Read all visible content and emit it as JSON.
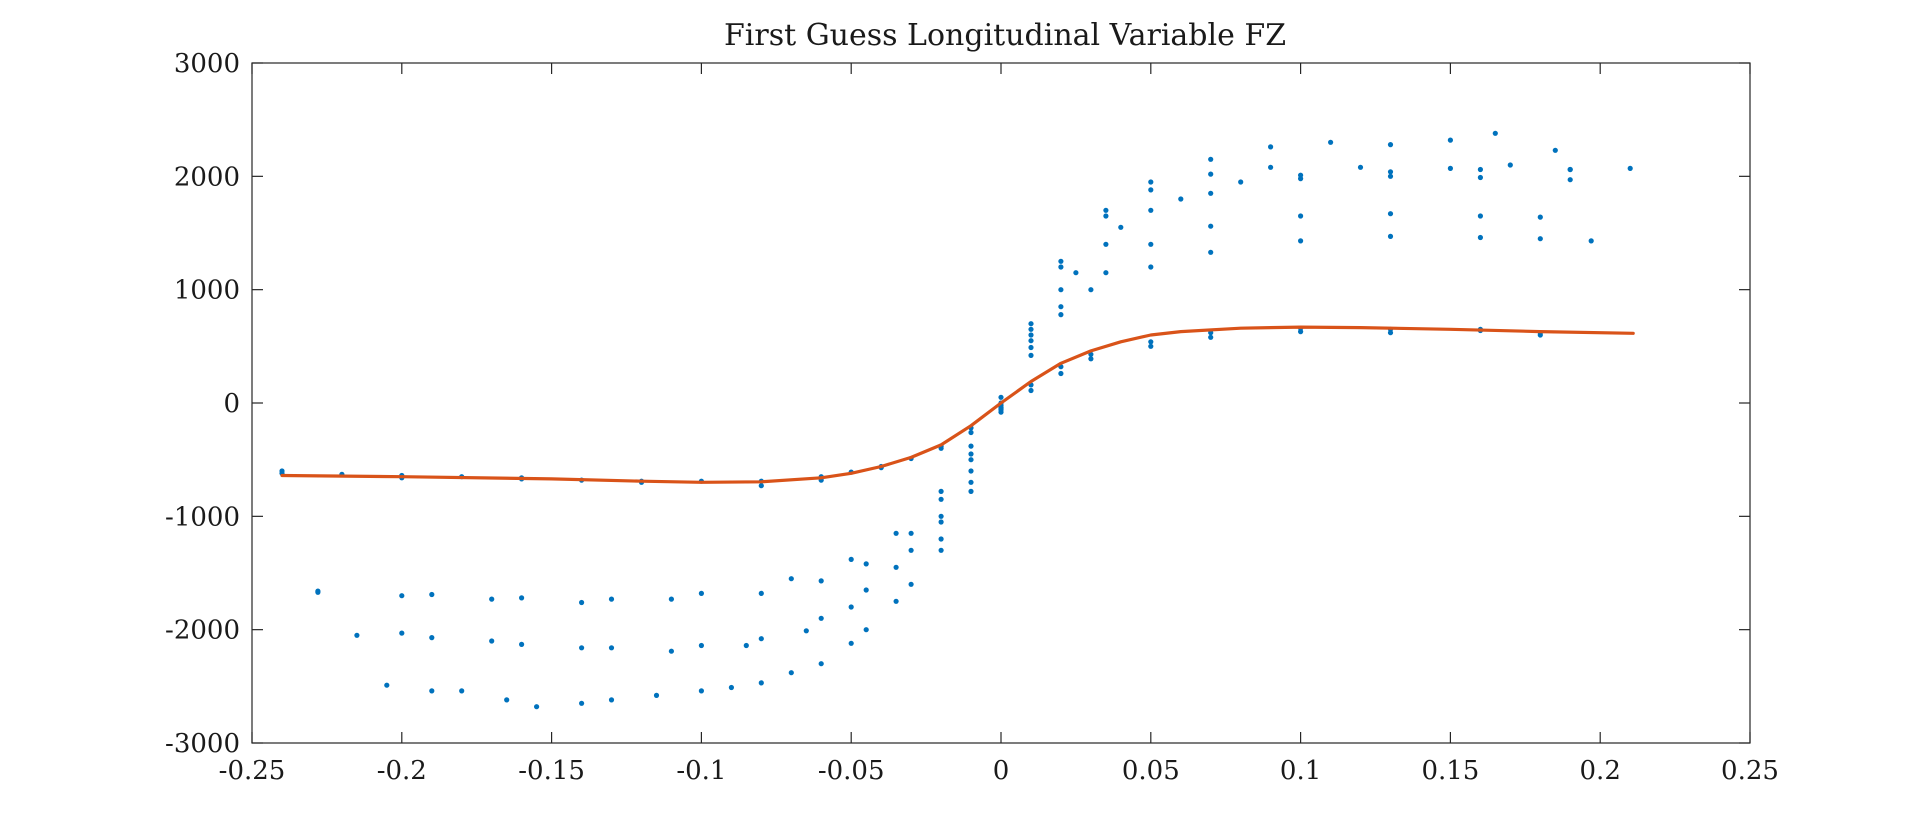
{
  "chart_data": {
    "type": "scatter",
    "title": "First Guess Longitudinal Variable FZ",
    "xlabel": "",
    "ylabel": "",
    "xlim": [
      -0.25,
      0.25
    ],
    "ylim": [
      -3000,
      3000
    ],
    "x_ticks": [
      "-0.25",
      "-0.2",
      "-0.15",
      "-0.1",
      "-0.05",
      "0",
      "0.05",
      "0.1",
      "0.15",
      "0.2",
      "0.25"
    ],
    "y_ticks": [
      "3000",
      "2000",
      "1000",
      "0",
      "-1000",
      "-2000",
      "-3000"
    ],
    "grid": false,
    "legend": "none",
    "colors": {
      "measured": "#0072BD",
      "fit": "#D95319"
    },
    "series": [
      {
        "kind": "scatter",
        "group": "measured",
        "points": [
          [
            -0.24,
            -600
          ],
          [
            -0.22,
            -630
          ],
          [
            -0.2,
            -640
          ],
          [
            -0.18,
            -650
          ],
          [
            -0.16,
            -660
          ],
          [
            -0.14,
            -680
          ],
          [
            -0.12,
            -690
          ],
          [
            -0.1,
            -690
          ],
          [
            -0.08,
            -690
          ],
          [
            -0.06,
            -650
          ],
          [
            -0.05,
            -610
          ],
          [
            -0.04,
            -560
          ],
          [
            -0.03,
            -490
          ],
          [
            -0.02,
            -380
          ],
          [
            -0.01,
            -220
          ],
          [
            0,
            0
          ],
          [
            0.01,
            160
          ],
          [
            0.02,
            320
          ],
          [
            0.03,
            430
          ],
          [
            0.05,
            540
          ],
          [
            0.07,
            620
          ],
          [
            0.1,
            660
          ],
          [
            0.13,
            650
          ],
          [
            0.16,
            650
          ],
          [
            0.18,
            620
          ]
        ]
      },
      {
        "kind": "scatter",
        "group": "measured",
        "points": [
          [
            -0.24,
            -620
          ],
          [
            -0.2,
            -660
          ],
          [
            -0.16,
            -670
          ],
          [
            -0.12,
            -700
          ],
          [
            -0.08,
            -730
          ],
          [
            -0.06,
            -680
          ],
          [
            -0.04,
            -570
          ],
          [
            -0.02,
            -400
          ],
          [
            -0.01,
            -260
          ],
          [
            0,
            -40
          ],
          [
            0.01,
            110
          ],
          [
            0.02,
            260
          ],
          [
            0.03,
            390
          ],
          [
            0.05,
            500
          ],
          [
            0.07,
            580
          ],
          [
            0.1,
            630
          ],
          [
            0.13,
            620
          ],
          [
            0.16,
            640
          ],
          [
            0.18,
            600
          ]
        ]
      },
      {
        "kind": "scatter",
        "group": "measured",
        "points": [
          [
            -0.228,
            -1670
          ],
          [
            -0.2,
            -1700
          ],
          [
            -0.17,
            -1730
          ],
          [
            -0.14,
            -1760
          ],
          [
            -0.11,
            -1730
          ],
          [
            -0.08,
            -1680
          ],
          [
            -0.06,
            -1570
          ],
          [
            -0.045,
            -1420
          ],
          [
            -0.03,
            -1150
          ],
          [
            -0.02,
            -850
          ],
          [
            -0.01,
            -450
          ],
          [
            0,
            -50
          ],
          [
            0.01,
            420
          ],
          [
            0.02,
            780
          ],
          [
            0.03,
            1000
          ],
          [
            0.05,
            1200
          ],
          [
            0.07,
            1330
          ],
          [
            0.1,
            1430
          ],
          [
            0.13,
            1470
          ],
          [
            0.16,
            1460
          ],
          [
            0.18,
            1450
          ],
          [
            0.197,
            1430
          ]
        ]
      },
      {
        "kind": "scatter",
        "group": "measured",
        "points": [
          [
            -0.228,
            -1660
          ],
          [
            -0.19,
            -1690
          ],
          [
            -0.16,
            -1720
          ],
          [
            -0.13,
            -1730
          ],
          [
            -0.1,
            -1680
          ],
          [
            -0.07,
            -1550
          ],
          [
            -0.05,
            -1380
          ],
          [
            -0.035,
            -1150
          ],
          [
            -0.02,
            -780
          ],
          [
            -0.01,
            -380
          ],
          [
            0,
            50
          ],
          [
            0.01,
            490
          ],
          [
            0.02,
            850
          ],
          [
            0.035,
            1150
          ],
          [
            0.05,
            1400
          ],
          [
            0.07,
            1560
          ],
          [
            0.1,
            1650
          ],
          [
            0.13,
            1670
          ],
          [
            0.16,
            1650
          ],
          [
            0.18,
            1640
          ]
        ]
      },
      {
        "kind": "scatter",
        "group": "measured",
        "points": [
          [
            -0.215,
            -2050
          ],
          [
            -0.19,
            -2070
          ],
          [
            -0.16,
            -2130
          ],
          [
            -0.13,
            -2160
          ],
          [
            -0.1,
            -2140
          ],
          [
            -0.08,
            -2080
          ],
          [
            -0.06,
            -1900
          ],
          [
            -0.045,
            -1650
          ],
          [
            -0.03,
            -1300
          ],
          [
            -0.02,
            -1000
          ],
          [
            -0.01,
            -500
          ],
          [
            0,
            -40
          ],
          [
            0.01,
            550
          ],
          [
            0.02,
            1000
          ],
          [
            0.035,
            1400
          ],
          [
            0.05,
            1700
          ],
          [
            0.07,
            1850
          ],
          [
            0.1,
            1980
          ],
          [
            0.13,
            2040
          ],
          [
            0.16,
            2060
          ],
          [
            0.19,
            2060
          ],
          [
            0.21,
            2070
          ]
        ]
      },
      {
        "kind": "scatter",
        "group": "measured",
        "points": [
          [
            -0.2,
            -2030
          ],
          [
            -0.17,
            -2100
          ],
          [
            -0.14,
            -2160
          ],
          [
            -0.11,
            -2190
          ],
          [
            -0.085,
            -2140
          ],
          [
            -0.065,
            -2010
          ],
          [
            -0.05,
            -1800
          ],
          [
            -0.035,
            -1450
          ],
          [
            -0.02,
            -1050
          ],
          [
            -0.01,
            -600
          ],
          [
            0,
            -20
          ],
          [
            0.01,
            600
          ],
          [
            0.025,
            1150
          ],
          [
            0.04,
            1550
          ],
          [
            0.06,
            1800
          ],
          [
            0.08,
            1950
          ],
          [
            0.1,
            2010
          ],
          [
            0.13,
            2000
          ],
          [
            0.16,
            1990
          ],
          [
            0.19,
            1970
          ]
        ]
      },
      {
        "kind": "scatter",
        "group": "measured",
        "points": [
          [
            -0.205,
            -2490
          ],
          [
            -0.18,
            -2540
          ],
          [
            -0.155,
            -2680
          ],
          [
            -0.13,
            -2620
          ],
          [
            -0.1,
            -2540
          ],
          [
            -0.08,
            -2470
          ],
          [
            -0.06,
            -2300
          ],
          [
            -0.045,
            -2000
          ],
          [
            -0.03,
            -1600
          ],
          [
            -0.02,
            -1200
          ],
          [
            -0.01,
            -700
          ],
          [
            0,
            -60
          ],
          [
            0.01,
            700
          ],
          [
            0.02,
            1250
          ],
          [
            0.035,
            1700
          ],
          [
            0.05,
            1950
          ],
          [
            0.07,
            2150
          ],
          [
            0.09,
            2260
          ],
          [
            0.11,
            2300
          ],
          [
            0.13,
            2280
          ],
          [
            0.15,
            2320
          ],
          [
            0.165,
            2380
          ],
          [
            0.185,
            2230
          ]
        ]
      },
      {
        "kind": "scatter",
        "group": "measured",
        "points": [
          [
            -0.19,
            -2540
          ],
          [
            -0.165,
            -2620
          ],
          [
            -0.14,
            -2650
          ],
          [
            -0.115,
            -2580
          ],
          [
            -0.09,
            -2510
          ],
          [
            -0.07,
            -2380
          ],
          [
            -0.05,
            -2120
          ],
          [
            -0.035,
            -1750
          ],
          [
            -0.02,
            -1300
          ],
          [
            -0.01,
            -780
          ],
          [
            0,
            -80
          ],
          [
            0.01,
            650
          ],
          [
            0.02,
            1200
          ],
          [
            0.035,
            1650
          ],
          [
            0.05,
            1880
          ],
          [
            0.07,
            2020
          ],
          [
            0.09,
            2080
          ],
          [
            0.12,
            2080
          ],
          [
            0.15,
            2070
          ],
          [
            0.17,
            2100
          ],
          [
            0.19,
            2060
          ]
        ]
      },
      {
        "kind": "line",
        "group": "fit",
        "points": [
          [
            -0.24,
            -640
          ],
          [
            -0.2,
            -650
          ],
          [
            -0.15,
            -670
          ],
          [
            -0.12,
            -690
          ],
          [
            -0.1,
            -700
          ],
          [
            -0.08,
            -695
          ],
          [
            -0.06,
            -660
          ],
          [
            -0.05,
            -620
          ],
          [
            -0.04,
            -560
          ],
          [
            -0.03,
            -480
          ],
          [
            -0.02,
            -370
          ],
          [
            -0.01,
            -200
          ],
          [
            0,
            0
          ],
          [
            0.01,
            190
          ],
          [
            0.02,
            350
          ],
          [
            0.03,
            460
          ],
          [
            0.04,
            540
          ],
          [
            0.05,
            600
          ],
          [
            0.06,
            630
          ],
          [
            0.08,
            660
          ],
          [
            0.1,
            670
          ],
          [
            0.12,
            665
          ],
          [
            0.15,
            650
          ],
          [
            0.18,
            630
          ],
          [
            0.211,
            615
          ]
        ]
      }
    ]
  }
}
